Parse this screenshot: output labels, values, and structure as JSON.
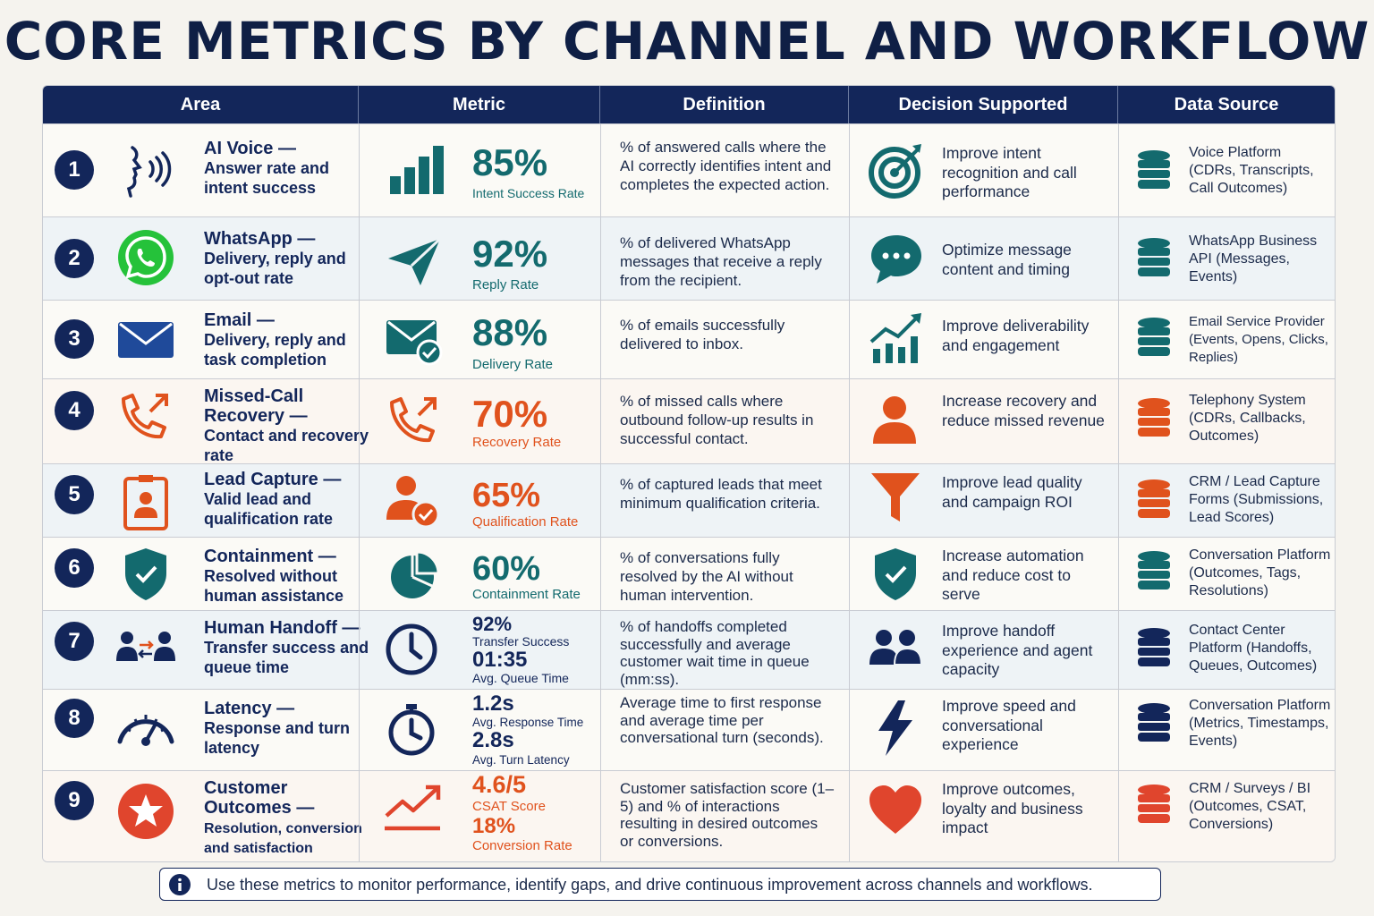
{
  "title": "CORE METRICS BY CHANNEL AND WORKFLOW",
  "headers": [
    "Area",
    "Metric",
    "Definition",
    "Decision Supported",
    "Data Source"
  ],
  "colors": {
    "navy": "#13265a",
    "teal": "#136a6e",
    "orange": "#e0521d",
    "whatsapp": "#25c23a",
    "red": "#e0452d"
  },
  "rows": [
    {
      "num": "1",
      "area_title": "AI Voice —",
      "area_sub": "Answer rate and intent success",
      "area_icon": "voice-icon",
      "metric_icon": "bar-chart-icon",
      "metric_value": "85%",
      "metric_label": "Intent Success Rate",
      "definition": "% of answered calls where the AI correctly identifies intent and completes the expected action.",
      "decision_icon": "target-icon",
      "decision": "Improve intent recognition and call performance",
      "source": "Voice Platform (CDRs, Transcripts, Call Outcomes)"
    },
    {
      "num": "2",
      "area_title": "WhatsApp —",
      "area_sub": "Delivery, reply and opt-out rate",
      "area_icon": "whatsapp-icon",
      "metric_icon": "send-icon",
      "metric_value": "92%",
      "metric_label": "Reply Rate",
      "definition": "% of delivered WhatsApp messages that receive a reply from the recipient.",
      "decision_icon": "chat-bubble-icon",
      "decision": "Optimize message content and timing",
      "source": "WhatsApp Business API (Messages, Events)"
    },
    {
      "num": "3",
      "area_title": "Email —",
      "area_sub": "Delivery, reply and task completion",
      "area_icon": "envelope-icon",
      "metric_icon": "envelope-check-icon",
      "metric_value": "88%",
      "metric_label": "Delivery Rate",
      "definition": "% of emails successfully delivered to inbox.",
      "decision_icon": "growth-chart-icon",
      "decision": "Improve deliverability and engagement",
      "source": "Email Service Provider (Events, Opens, Clicks, Replies)"
    },
    {
      "num": "4",
      "area_title": "Missed-Call Recovery —",
      "area_sub": "Contact and recovery rate",
      "area_icon": "phone-callback-icon",
      "metric_icon": "phone-callback-icon",
      "metric_value": "70%",
      "metric_label": "Recovery Rate",
      "definition": "% of missed calls where outbound follow-up results in successful contact.",
      "decision_icon": "person-icon",
      "decision": "Increase recovery and reduce missed revenue",
      "source": "Telephony System (CDRs, Callbacks, Outcomes)"
    },
    {
      "num": "5",
      "area_title": "Lead Capture —",
      "area_sub": "Valid lead and qualification rate",
      "area_icon": "id-badge-icon",
      "metric_icon": "person-check-icon",
      "metric_value": "65%",
      "metric_label": "Qualification Rate",
      "definition": "% of captured leads that meet minimum qualification criteria.",
      "decision_icon": "funnel-icon",
      "decision": "Improve lead quality and campaign ROI",
      "source": "CRM / Lead Capture Forms (Submissions, Lead Scores)"
    },
    {
      "num": "6",
      "area_title": "Containment —",
      "area_sub": "Resolved without human assistance",
      "area_icon": "shield-check-icon",
      "metric_icon": "pie-chart-icon",
      "metric_value": "60%",
      "metric_label": "Containment Rate",
      "definition": "% of conversations fully resolved by the AI without human intervention.",
      "decision_icon": "shield-check-icon",
      "decision": "Increase automation and reduce cost to serve",
      "source": "Conversation Platform (Outcomes, Tags, Resolutions)"
    },
    {
      "num": "7",
      "area_title": "Human Handoff —",
      "area_sub": "Transfer success and queue time",
      "area_icon": "handoff-icon",
      "metric_icon": "clock-icon",
      "metric_value": "92%",
      "metric_label": "Transfer Success",
      "metric_value2": "01:35",
      "metric_label2": "Avg. Queue Time",
      "definition": "% of handoffs completed successfully and average customer wait time in queue (mm:ss).",
      "decision_icon": "people-icon",
      "decision": "Improve handoff experience and agent capacity",
      "source": "Contact Center Platform (Handoffs, Queues, Outcomes)"
    },
    {
      "num": "8",
      "area_title": "Latency —",
      "area_sub": "Response and turn latency",
      "area_icon": "gauge-icon",
      "metric_icon": "stopwatch-icon",
      "metric_value": "1.2s",
      "metric_label": "Avg. Response Time",
      "metric_value2": "2.8s",
      "metric_label2": "Avg. Turn Latency",
      "definition": "Average time to first response and average time per conversational turn (seconds).",
      "decision_icon": "lightning-icon",
      "decision": "Improve speed and conversational experience",
      "source": "Conversation Platform (Metrics, Timestamps, Events)"
    },
    {
      "num": "9",
      "area_title": "Customer Outcomes —",
      "area_sub": "Resolution, conversion and satisfaction",
      "area_icon": "star-icon",
      "metric_icon": "trend-up-icon",
      "metric_value": "4.6/5",
      "metric_label": "CSAT Score",
      "metric_value2": "18%",
      "metric_label2": "Conversion Rate",
      "definition": "Customer satisfaction score (1–5) and % of interactions resulting in desired outcomes or conversions.",
      "decision_icon": "heart-icon",
      "decision": "Improve outcomes, loyalty and business impact",
      "source": "CRM / Surveys / BI (Outcomes, CSAT, Conversions)"
    }
  ],
  "note": "Use these metrics to monitor performance, identify gaps, and drive continuous improvement across channels and workflows."
}
